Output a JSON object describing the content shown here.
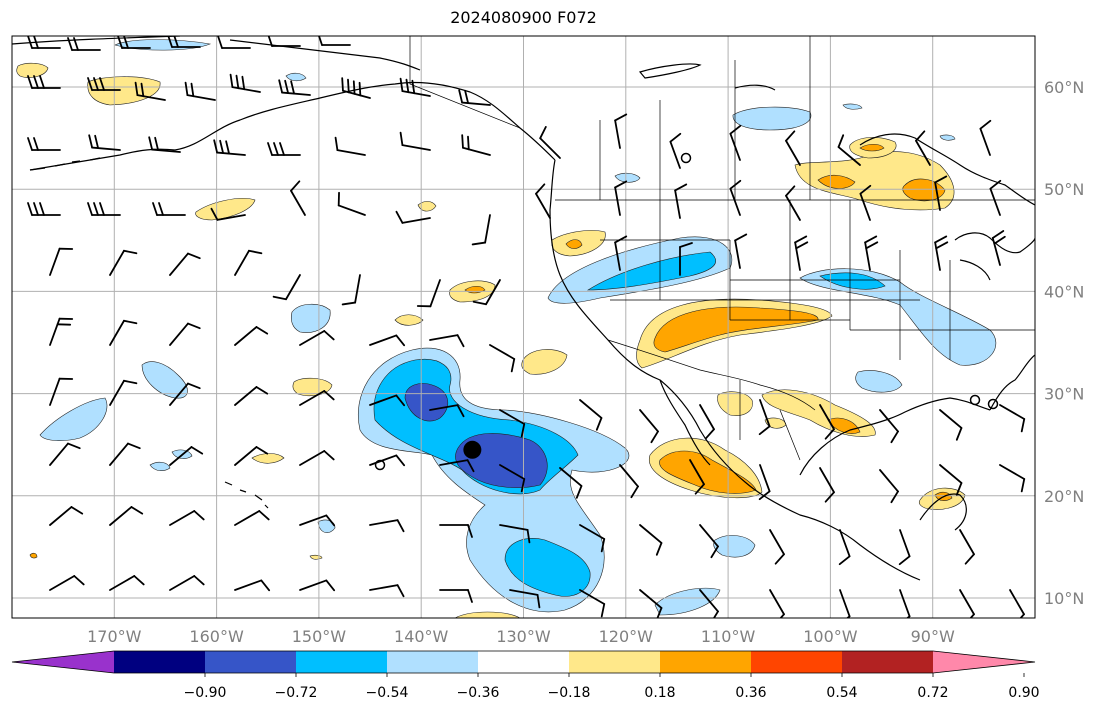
{
  "title": "2024080900 F072",
  "lon_labels": [
    {
      "lon": -170,
      "text": "170°W"
    },
    {
      "lon": -160,
      "text": "160°W"
    },
    {
      "lon": -150,
      "text": "150°W"
    },
    {
      "lon": -140,
      "text": "140°W"
    },
    {
      "lon": -130,
      "text": "130°W"
    },
    {
      "lon": -120,
      "text": "120°W"
    },
    {
      "lon": -110,
      "text": "110°W"
    },
    {
      "lon": -100,
      "text": "100°W"
    },
    {
      "lon": -90,
      "text": "90°W"
    }
  ],
  "lat_labels": [
    {
      "lat": 60,
      "text": "60°N"
    },
    {
      "lat": 50,
      "text": "50°N"
    },
    {
      "lat": 40,
      "text": "40°N"
    },
    {
      "lat": 30,
      "text": "30°N"
    },
    {
      "lat": 20,
      "text": "20°N"
    },
    {
      "lat": 10,
      "text": "10°N"
    }
  ],
  "map_extent": {
    "lon_min": -180,
    "lon_max": -80,
    "lat_min": 8,
    "lat_max": 65
  },
  "colorbar": {
    "colors": [
      "#9932cc",
      "#000080",
      "#3655c8",
      "#00bfff",
      "#b0e0ff",
      "#ffffff",
      "#ffe88a",
      "#ffa500",
      "#ff4500",
      "#b22222",
      "#ff88aa"
    ],
    "tick_labels": [
      "−0.90",
      "−0.72",
      "−0.54",
      "−0.36",
      "−0.18",
      "0.18",
      "0.36",
      "0.54",
      "0.72",
      "0.90"
    ]
  },
  "marker": {
    "lon": -135,
    "lat": 24.5
  }
}
